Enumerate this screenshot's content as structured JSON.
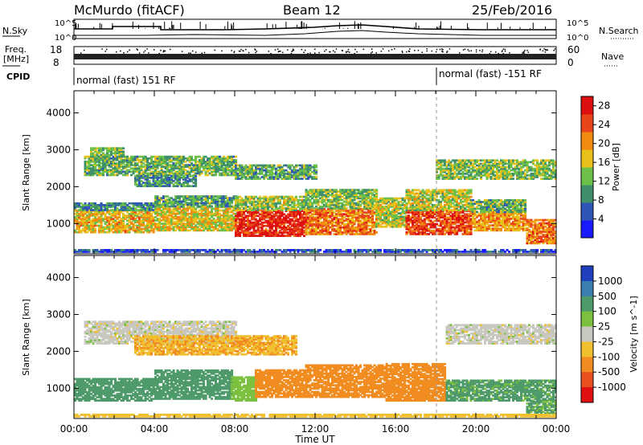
{
  "header": {
    "station": "McMurdo (fitACF)",
    "beam": "Beam 12",
    "date": "25/Feb/2016"
  },
  "top_panels": {
    "nsky_label": "N.Sky",
    "nsearch_label": "N.Search",
    "nsky_ticks": [
      "10^5",
      "10^0"
    ],
    "nsearch_ticks": [
      "10^5",
      "10^0"
    ],
    "freq_label_line1": "Freq.",
    "freq_label_line2": "[MHz]",
    "freq_ticks": [
      "18",
      "8"
    ],
    "nave_label": "Nave",
    "nave_ticks": [
      "60",
      "0"
    ],
    "cpid_label": "CPID",
    "cpid_segments": [
      {
        "label": "normal (fast) 151 RF",
        "start_hour": 0
      },
      {
        "label": "normal (fast) -151 RF",
        "start_hour": 18.1
      }
    ]
  },
  "x_axis": {
    "label": "Time UT",
    "ticks": [
      "00:00",
      "04:00",
      "08:00",
      "12:00",
      "16:00",
      "20:00",
      "00:00"
    ],
    "range_hours": [
      0,
      24
    ]
  },
  "chart_data": [
    {
      "type": "heatmap",
      "name": "power",
      "ylabel": "Slant Range [km]",
      "yticks": [
        1000,
        2000,
        3000,
        4000
      ],
      "ylim": [
        180,
        4600
      ],
      "xlim": [
        0,
        24
      ],
      "colorbar_label": "Power [dB]",
      "colorbar_ticks": [
        4,
        8,
        12,
        16,
        20,
        24,
        28
      ],
      "colorbar_range": [
        0,
        30
      ],
      "colors": [
        "#1a1aff",
        "#2f55b8",
        "#3f8f6a",
        "#6cc04a",
        "#e8c21a",
        "#f08a10",
        "#e8451a",
        "#dd1010"
      ],
      "bands": [
        {
          "x": [
            0.0,
            24.0
          ],
          "y": [
            220,
            300
          ],
          "value": 5
        },
        {
          "x": [
            0.0,
            4.0
          ],
          "y": [
            750,
            1350
          ],
          "value": 18
        },
        {
          "x": [
            0.0,
            4.0
          ],
          "y": [
            1350,
            1550
          ],
          "value": 9
        },
        {
          "x": [
            4.0,
            8.0
          ],
          "y": [
            800,
            1450
          ],
          "value": 17
        },
        {
          "x": [
            4.0,
            8.0
          ],
          "y": [
            1450,
            1750
          ],
          "value": 11
        },
        {
          "x": [
            8.0,
            11.5
          ],
          "y": [
            650,
            1350
          ],
          "value": 27
        },
        {
          "x": [
            8.0,
            11.5
          ],
          "y": [
            1350,
            1750
          ],
          "value": 14
        },
        {
          "x": [
            11.5,
            15.0
          ],
          "y": [
            700,
            1400
          ],
          "value": 22
        },
        {
          "x": [
            11.5,
            15.0
          ],
          "y": [
            1400,
            1900
          ],
          "value": 13
        },
        {
          "x": [
            15.0,
            16.5
          ],
          "y": [
            900,
            1700
          ],
          "value": 15
        },
        {
          "x": [
            16.5,
            19.8
          ],
          "y": [
            700,
            1350
          ],
          "value": 25
        },
        {
          "x": [
            16.5,
            19.8
          ],
          "y": [
            1350,
            1900
          ],
          "value": 15
        },
        {
          "x": [
            19.8,
            22.5
          ],
          "y": [
            800,
            1300
          ],
          "value": 20
        },
        {
          "x": [
            19.8,
            22.5
          ],
          "y": [
            1300,
            1650
          ],
          "value": 12
        },
        {
          "x": [
            22.5,
            24.0
          ],
          "y": [
            450,
            1100
          ],
          "value": 22
        },
        {
          "x": [
            0.5,
            8.0
          ],
          "y": [
            2300,
            2800
          ],
          "value": 12
        },
        {
          "x": [
            8.0,
            12.0
          ],
          "y": [
            2200,
            2600
          ],
          "value": 11
        },
        {
          "x": [
            18.0,
            24.0
          ],
          "y": [
            2200,
            2700
          ],
          "value": 13
        },
        {
          "x": [
            0.8,
            2.5
          ],
          "y": [
            2800,
            3050
          ],
          "value": 13
        },
        {
          "x": [
            3.0,
            6.0
          ],
          "y": [
            2000,
            2300
          ],
          "value": 9
        }
      ]
    },
    {
      "type": "heatmap",
      "name": "velocity",
      "ylabel": "Slant Range [km]",
      "yticks": [
        1000,
        2000,
        3000,
        4000
      ],
      "ylim": [
        180,
        4600
      ],
      "xlim": [
        0,
        24
      ],
      "colorbar_label": "Velocity [m s^-1]",
      "colorbar_ticks": [
        "1000",
        "500",
        "100",
        "25",
        "-25",
        "-100",
        "-500",
        "-1000"
      ],
      "colors": [
        "#2040c0",
        "#3a7fb0",
        "#4e9a6a",
        "#7cc040",
        "#c8c8c0",
        "#f0c030",
        "#f08c20",
        "#e85020",
        "#e01010"
      ],
      "bands": [
        {
          "x": [
            0.0,
            4.0
          ],
          "y": [
            650,
            1250
          ],
          "value": 150
        },
        {
          "x": [
            4.0,
            7.8
          ],
          "y": [
            700,
            1500
          ],
          "value": 150
        },
        {
          "x": [
            7.8,
            9.0
          ],
          "y": [
            650,
            1300
          ],
          "value": 60
        },
        {
          "x": [
            9.0,
            11.5
          ],
          "y": [
            750,
            1500
          ],
          "value": -150
        },
        {
          "x": [
            11.5,
            15.5
          ],
          "y": [
            750,
            1650
          ],
          "value": -180
        },
        {
          "x": [
            15.5,
            18.5
          ],
          "y": [
            650,
            1650
          ],
          "value": -200
        },
        {
          "x": [
            18.5,
            24.0
          ],
          "y": [
            650,
            1200
          ],
          "value": 120
        },
        {
          "x": [
            0.5,
            8.0
          ],
          "y": [
            2200,
            2800
          ],
          "value": 0
        },
        {
          "x": [
            18.5,
            24.0
          ],
          "y": [
            2200,
            2700
          ],
          "value": 0
        },
        {
          "x": [
            3.0,
            11.0
          ],
          "y": [
            1900,
            2400
          ],
          "value": -90
        },
        {
          "x": [
            22.5,
            24.0
          ],
          "y": [
            300,
            650
          ],
          "value": 110
        },
        {
          "x": [
            0.0,
            24.0
          ],
          "y": [
            220,
            300
          ],
          "value": -60
        }
      ]
    }
  ]
}
